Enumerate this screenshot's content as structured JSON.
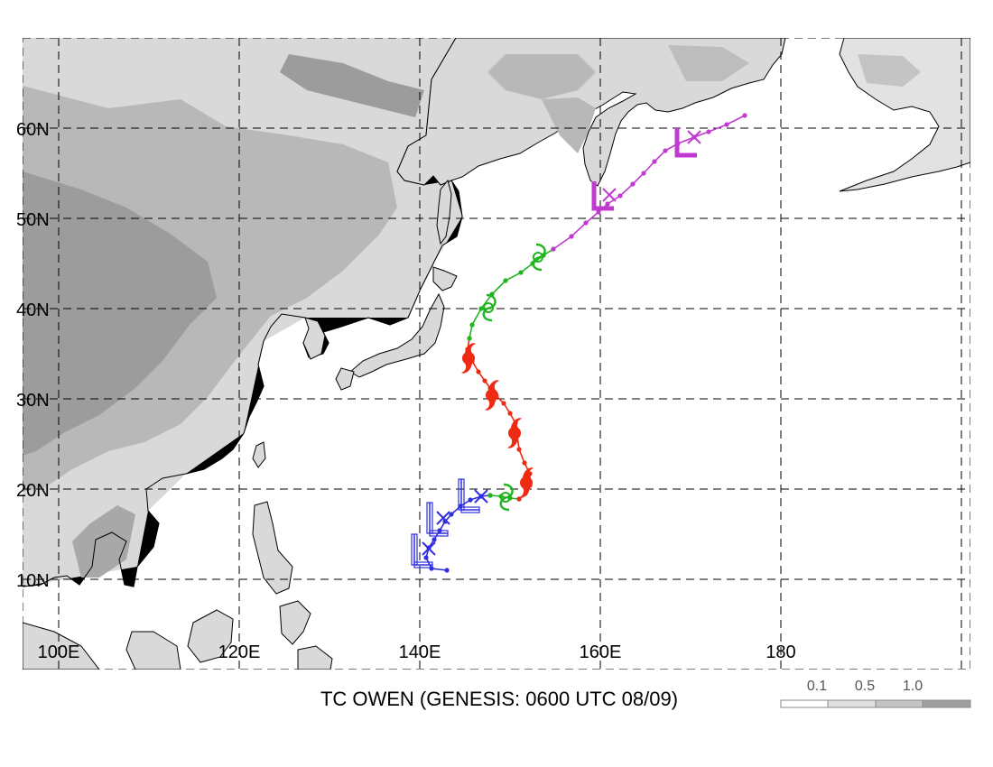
{
  "map": {
    "title": "TC OWEN (GENESIS: 0600 UTC 08/09)",
    "lat_labels": [
      "10N",
      "20N",
      "30N",
      "40N",
      "50N",
      "60N"
    ],
    "lon_labels": [
      "100E",
      "120E",
      "140E",
      "160E",
      "180"
    ],
    "lon_range": [
      96,
      201
    ],
    "lat_range": [
      0,
      70
    ],
    "grid": true,
    "colors": {
      "land_light": "#d7d7d7",
      "land_mid": "#b9b9b9",
      "land_dark": "#9a9a9a",
      "coast": "#000000",
      "blue": "#2f2fe0",
      "green": "#1fb51f",
      "red": "#ee2a12",
      "magenta": "#c03ad0"
    }
  },
  "legend": {
    "labels": [
      "0.1",
      "0.5",
      "1.0"
    ],
    "shades": [
      "#ffffff",
      "#e0e0e0",
      "#c4c4c4",
      "#a0a0a0"
    ]
  },
  "track": {
    "blue": [
      [
        143.0,
        11.0
      ],
      [
        141.3,
        11.2
      ],
      [
        140.7,
        12.4
      ],
      [
        141.0,
        13.5
      ],
      [
        141.6,
        14.4
      ],
      [
        142.2,
        15.4
      ],
      [
        142.8,
        16.4
      ],
      [
        143.5,
        17.2
      ],
      [
        144.5,
        18.1
      ],
      [
        145.6,
        18.8
      ],
      [
        146.8,
        19.2
      ],
      [
        147.8,
        19.3
      ]
    ],
    "green_low": [
      [
        147.8,
        19.3
      ],
      [
        149.0,
        19.2
      ],
      [
        150.0,
        19.0
      ],
      [
        151.0,
        18.9
      ]
    ],
    "red": [
      [
        151.0,
        18.9
      ],
      [
        151.7,
        19.5
      ],
      [
        152.2,
        20.4
      ],
      [
        152.2,
        21.7
      ],
      [
        151.6,
        22.9
      ],
      [
        151.0,
        24.4
      ],
      [
        150.8,
        25.9
      ],
      [
        150.6,
        27.3
      ],
      [
        150.0,
        28.4
      ],
      [
        149.3,
        29.5
      ],
      [
        148.5,
        30.3
      ],
      [
        147.8,
        31.2
      ],
      [
        147.2,
        32.0
      ],
      [
        146.5,
        33.0
      ],
      [
        145.8,
        34.2
      ],
      [
        145.3,
        35.5
      ],
      [
        145.5,
        36.7
      ]
    ],
    "green_high": [
      [
        145.5,
        36.7
      ],
      [
        145.8,
        38.2
      ],
      [
        146.8,
        40.0
      ],
      [
        148.0,
        41.6
      ],
      [
        149.5,
        43.1
      ],
      [
        151.2,
        44.0
      ],
      [
        152.5,
        45.0
      ],
      [
        153.7,
        45.9
      ],
      [
        154.8,
        46.6
      ]
    ],
    "magenta": [
      [
        154.8,
        46.6
      ],
      [
        156.8,
        48.0
      ],
      [
        158.4,
        49.5
      ],
      [
        159.8,
        50.7
      ],
      [
        160.8,
        51.6
      ],
      [
        162.2,
        52.5
      ],
      [
        163.6,
        53.8
      ],
      [
        164.8,
        55.0
      ],
      [
        166.0,
        56.3
      ],
      [
        167.2,
        57.5
      ],
      [
        168.6,
        58.3
      ],
      [
        170.4,
        59.0
      ],
      [
        172.0,
        59.6
      ],
      [
        174.0,
        60.4
      ],
      [
        176.0,
        61.4
      ]
    ],
    "symbols": [
      {
        "type": "low",
        "lon": 140.4,
        "lat": 13.3,
        "color": "blue"
      },
      {
        "type": "low",
        "lon": 142.1,
        "lat": 16.8,
        "color": "blue"
      },
      {
        "type": "low",
        "lon": 145.6,
        "lat": 19.4,
        "color": "blue"
      },
      {
        "type": "ts",
        "lon": 149.5,
        "lat": 19.1,
        "color": "green"
      },
      {
        "type": "hur",
        "lon": 151.8,
        "lat": 20.7,
        "color": "red"
      },
      {
        "type": "hur",
        "lon": 150.5,
        "lat": 26.2,
        "color": "red"
      },
      {
        "type": "hur",
        "lon": 148.0,
        "lat": 30.4,
        "color": "red"
      },
      {
        "type": "hur",
        "lon": 145.4,
        "lat": 34.5,
        "color": "red"
      },
      {
        "type": "ts",
        "lon": 147.6,
        "lat": 40.1,
        "color": "green"
      },
      {
        "type": "ts",
        "lon": 153.1,
        "lat": 45.7,
        "color": "green"
      },
      {
        "type": "low",
        "lon": 160.4,
        "lat": 52.6,
        "color": "magenta"
      },
      {
        "type": "low",
        "lon": 169.6,
        "lat": 58.5,
        "color": "magenta"
      }
    ],
    "crosses": [
      {
        "lon": 141.0,
        "lat": 13.4,
        "color": "blue"
      },
      {
        "lon": 142.6,
        "lat": 16.8,
        "color": "blue"
      },
      {
        "lon": 146.8,
        "lat": 19.2,
        "color": "blue"
      },
      {
        "lon": 161.0,
        "lat": 52.6,
        "color": "magenta"
      },
      {
        "lon": 170.4,
        "lat": 59.0,
        "color": "magenta"
      }
    ]
  }
}
